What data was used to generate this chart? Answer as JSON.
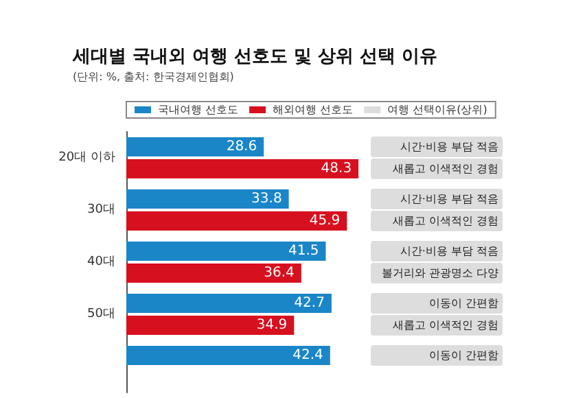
{
  "chart_data": {
    "type": "bar",
    "orientation": "horizontal",
    "title": "세대별 국내외 여행 선호도 및 상위 선택 이유",
    "subtitle": "(단위: %, 출처: 한국경제인협회)",
    "categories": [
      "20대 이하",
      "30대",
      "40대",
      "50대",
      null
    ],
    "series": [
      {
        "name": "국내여행 선호도",
        "color": "#1a86c8",
        "values": [
          28.6,
          33.8,
          41.5,
          42.7,
          42.4
        ]
      },
      {
        "name": "해외여행 선호도",
        "color": "#d7101f",
        "values": [
          48.3,
          45.9,
          36.4,
          34.9,
          null
        ]
      },
      {
        "name": "여행 선택이유(상위)",
        "color": "#dddddd",
        "type": "other",
        "values": [
          null,
          null,
          null,
          null,
          null
        ]
      }
    ],
    "annotations": [
      "시간·비용 부담 적음",
      "새롭고 이색적인 경험",
      "시간·비용 부담 적음",
      "새롭고 이색적인 경험",
      "시간·비용 부담 적음",
      "볼거리와 관광명소 다양",
      "이동이 간편함",
      "새롭고 이색적인 경험",
      "이동이 간편함"
    ],
    "data_labels": true,
    "legend": "top"
  }
}
